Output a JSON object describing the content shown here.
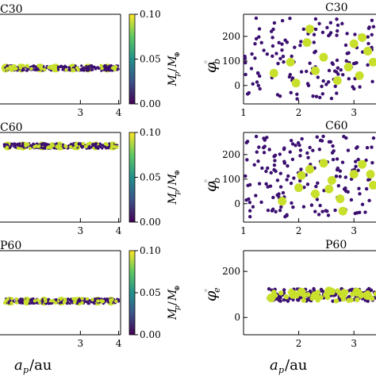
{
  "figure": {
    "colormap": [
      "#440154",
      "#3b528b",
      "#21918c",
      "#5ec962",
      "#fde725"
    ],
    "point_dark_color": "#3b0f70",
    "point_light_color": "#c8e02c"
  },
  "chart_data": [
    {
      "id": "c30-left",
      "type": "scatter",
      "title": "C30",
      "xlabel": "a_p/au",
      "xlim": [
        0.9,
        4.05
      ],
      "ylim": [
        0,
        0.1
      ],
      "xticks": [
        3,
        4
      ],
      "band": {
        "y": 0.04,
        "x_range": [
          1.0,
          4.0
        ],
        "spread": 0.003
      },
      "large_points_x": [
        1.05,
        1.45,
        1.95,
        2.35,
        2.8,
        3.2,
        3.7
      ]
    },
    {
      "id": "c60-left",
      "type": "scatter",
      "title": "C60",
      "xlabel": "",
      "xlim": [
        0.9,
        4.05
      ],
      "ylim": [
        0,
        0.1
      ],
      "xticks": [
        3,
        4
      ],
      "band": {
        "y": 0.085,
        "x_range": [
          1.0,
          4.0
        ],
        "spread": 0.003
      },
      "large_points_x": [
        1.1,
        1.5,
        2.0,
        2.45,
        2.9,
        3.4,
        3.85
      ]
    },
    {
      "id": "p60-left",
      "type": "scatter",
      "title": "P60",
      "xlabel": "a_p/au",
      "xlim": [
        0.9,
        4.05
      ],
      "ylim": [
        0,
        0.1
      ],
      "xticks": [
        3,
        4
      ],
      "band": {
        "y": 0.04,
        "x_range": [
          1.0,
          4.0
        ],
        "spread": 0.003
      },
      "large_points_x": [
        1.15,
        1.6,
        2.05,
        2.5,
        2.95,
        3.45,
        3.8
      ]
    },
    {
      "id": "c30-right",
      "type": "scatter",
      "title": "C30",
      "ylabel": "phi_b",
      "xlabel": "",
      "xlim": [
        1,
        3.4
      ],
      "ylim": [
        -75,
        290
      ],
      "xticks": [
        1,
        2,
        3
      ],
      "yticks": [
        0,
        100,
        200
      ],
      "dark_count": 150,
      "large_points": [
        [
          1.55,
          50
        ],
        [
          1.95,
          10
        ],
        [
          2.15,
          175
        ],
        [
          2.3,
          60
        ],
        [
          2.45,
          115
        ],
        [
          2.7,
          20
        ],
        [
          2.9,
          75
        ],
        [
          3.0,
          170
        ],
        [
          3.15,
          195
        ],
        [
          3.25,
          140
        ],
        [
          3.35,
          95
        ],
        [
          2.2,
          230
        ],
        [
          1.85,
          95
        ],
        [
          3.1,
          40
        ]
      ]
    },
    {
      "id": "c60-right",
      "type": "scatter",
      "title": "C60",
      "ylabel": "phi_b",
      "xlabel": "",
      "xlim": [
        1,
        3.4
      ],
      "ylim": [
        -75,
        290
      ],
      "xticks": [
        1,
        2,
        3
      ],
      "yticks": [
        0,
        100,
        200
      ],
      "dark_count": 170,
      "large_points": [
        [
          1.7,
          10
        ],
        [
          2.0,
          65
        ],
        [
          2.05,
          115
        ],
        [
          2.3,
          40
        ],
        [
          2.45,
          165
        ],
        [
          2.6,
          95
        ],
        [
          2.75,
          20
        ],
        [
          3.0,
          120
        ],
        [
          3.15,
          160
        ],
        [
          3.3,
          120
        ],
        [
          3.35,
          75
        ],
        [
          2.8,
          -30
        ],
        [
          2.55,
          60
        ],
        [
          2.2,
          140
        ]
      ]
    },
    {
      "id": "p60-right",
      "type": "scatter",
      "title": "P60",
      "ylabel": "phi_e",
      "xlabel": "a_p/au",
      "xlim": [
        1,
        3.4
      ],
      "ylim": [
        -75,
        290
      ],
      "xticks": [
        2,
        3
      ],
      "yticks": [
        0,
        200
      ],
      "band": {
        "y_range": [
          70,
          125
        ],
        "x_range": [
          1.45,
          3.4
        ]
      },
      "large_points": [
        [
          1.5,
          85
        ],
        [
          1.9,
          100
        ],
        [
          2.05,
          110
        ],
        [
          2.3,
          95
        ],
        [
          2.55,
          115
        ],
        [
          2.8,
          100
        ],
        [
          3.05,
          110
        ],
        [
          3.25,
          95
        ]
      ]
    }
  ],
  "colorbar": {
    "label": "M_p/M_earth",
    "ticks": [
      "0.10",
      "0.05",
      "0.00"
    ],
    "range": [
      0,
      0.1
    ]
  }
}
